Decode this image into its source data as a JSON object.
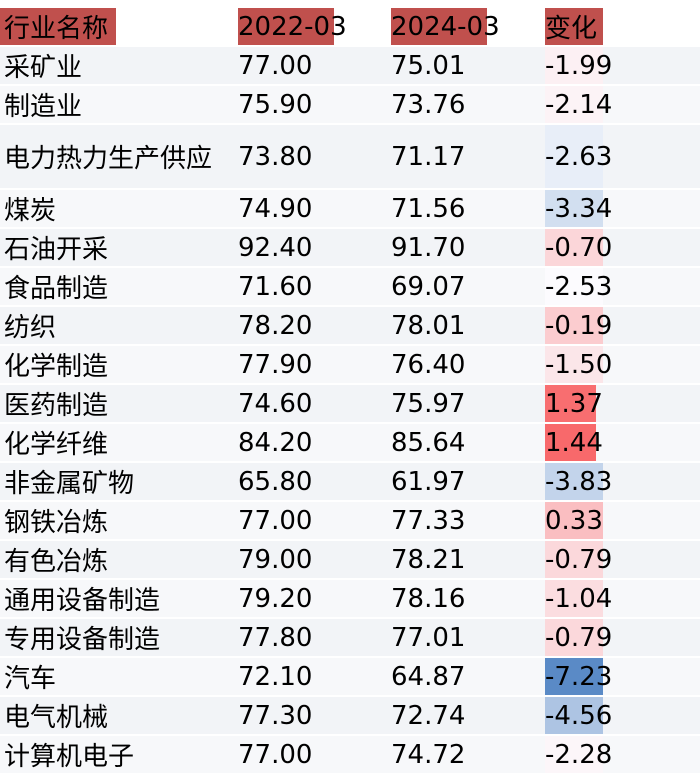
{
  "header": {
    "name": "行业名称",
    "a": "2022-03",
    "b": "2024-03",
    "chg": "变化"
  },
  "colors": {
    "header": "#c0504d",
    "pos": "#f8696b",
    "neg": "#5a8ac6",
    "neutral": "#fcfcff"
  },
  "rows": [
    {
      "name": "采矿业",
      "a": "77.00",
      "b": "75.01",
      "chg": "-1.99"
    },
    {
      "name": "制造业",
      "a": "75.90",
      "b": "73.76",
      "chg": "-2.14"
    },
    {
      "name": "电力热力生产供应",
      "a": "73.80",
      "b": "71.17",
      "chg": "-2.63"
    },
    {
      "name": "煤炭",
      "a": "74.90",
      "b": "71.56",
      "chg": "-3.34"
    },
    {
      "name": "石油开采",
      "a": "92.40",
      "b": "91.70",
      "chg": "-0.70"
    },
    {
      "name": "食品制造",
      "a": "71.60",
      "b": "69.07",
      "chg": "-2.53"
    },
    {
      "name": "纺织",
      "a": "78.20",
      "b": "78.01",
      "chg": "-0.19"
    },
    {
      "name": "化学制造",
      "a": "77.90",
      "b": "76.40",
      "chg": "-1.50"
    },
    {
      "name": "医药制造",
      "a": "74.60",
      "b": "75.97",
      "chg": "1.37"
    },
    {
      "name": "化学纤维",
      "a": "84.20",
      "b": "85.64",
      "chg": "1.44"
    },
    {
      "name": "非金属矿物",
      "a": "65.80",
      "b": "61.97",
      "chg": "-3.83"
    },
    {
      "name": "钢铁冶炼",
      "a": "77.00",
      "b": "77.33",
      "chg": "0.33"
    },
    {
      "name": "有色冶炼",
      "a": "79.00",
      "b": "78.21",
      "chg": "-0.79"
    },
    {
      "name": "通用设备制造",
      "a": "79.20",
      "b": "78.16",
      "chg": "-1.04"
    },
    {
      "name": "专用设备制造",
      "a": "77.80",
      "b": "77.01",
      "chg": "-0.79"
    },
    {
      "name": "汽车",
      "a": "72.10",
      "b": "64.87",
      "chg": "-7.23"
    },
    {
      "name": "电气机械",
      "a": "77.30",
      "b": "72.74",
      "chg": "-4.56"
    },
    {
      "name": "计算机电子",
      "a": "77.00",
      "b": "74.72",
      "chg": "-2.28"
    }
  ],
  "chart_data": {
    "type": "table",
    "columns": [
      "行业名称",
      "2022-03",
      "2024-03",
      "变化"
    ],
    "rows": [
      [
        "采矿业",
        77.0,
        75.01,
        -1.99
      ],
      [
        "制造业",
        75.9,
        73.76,
        -2.14
      ],
      [
        "电力热力生产供应",
        73.8,
        71.17,
        -2.63
      ],
      [
        "煤炭",
        74.9,
        71.56,
        -3.34
      ],
      [
        "石油开采",
        92.4,
        91.7,
        -0.7
      ],
      [
        "食品制造",
        71.6,
        69.07,
        -2.53
      ],
      [
        "纺织",
        78.2,
        78.01,
        -0.19
      ],
      [
        "化学制造",
        77.9,
        76.4,
        -1.5
      ],
      [
        "医药制造",
        74.6,
        75.97,
        1.37
      ],
      [
        "化学纤维",
        84.2,
        85.64,
        1.44
      ],
      [
        "非金属矿物",
        65.8,
        61.97,
        -3.83
      ],
      [
        "钢铁冶炼",
        77.0,
        77.33,
        0.33
      ],
      [
        "有色冶炼",
        79.0,
        78.21,
        -0.79
      ],
      [
        "通用设备制造",
        79.2,
        78.16,
        -1.04
      ],
      [
        "专用设备制造",
        77.8,
        77.01,
        -0.79
      ],
      [
        "汽车",
        72.1,
        64.87,
        -7.23
      ],
      [
        "电气机械",
        77.3,
        72.74,
        -4.56
      ],
      [
        "计算机电子",
        77.0,
        74.72,
        -2.28
      ]
    ]
  }
}
